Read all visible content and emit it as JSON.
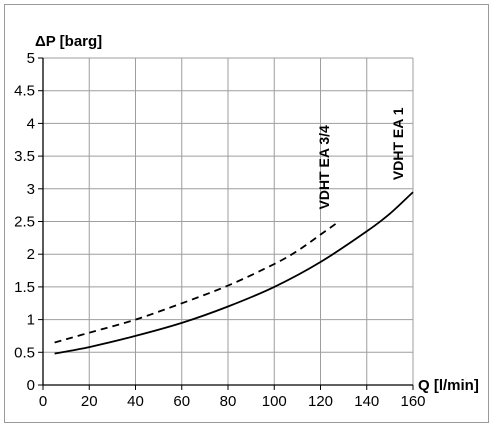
{
  "chart_data": {
    "type": "line",
    "xlabel": "Q [l/min]",
    "ylabel": "ΔP [barg]",
    "xlim": [
      0,
      160
    ],
    "ylim": [
      0,
      5
    ],
    "x_ticks": [
      "0",
      "20",
      "40",
      "60",
      "80",
      "100",
      "120",
      "140",
      "160"
    ],
    "y_ticks": [
      "0",
      "0.5",
      "1",
      "1.5",
      "2",
      "2.5",
      "3",
      "3.5",
      "4",
      "4.5",
      "5"
    ],
    "x_tick_values": [
      0,
      20,
      40,
      60,
      80,
      100,
      120,
      140,
      160
    ],
    "y_tick_values": [
      0,
      0.5,
      1,
      1.5,
      2,
      2.5,
      3,
      3.5,
      4,
      4.5,
      5
    ],
    "grid": true,
    "legend": "none",
    "series": [
      {
        "name": "VDHT EA 3/4",
        "style": "dashed",
        "color": "#000000",
        "x": [
          5,
          20,
          40,
          60,
          80,
          100,
          110,
          120,
          128
        ],
        "y": [
          0.65,
          0.8,
          1.0,
          1.25,
          1.52,
          1.85,
          2.05,
          2.3,
          2.5
        ]
      },
      {
        "name": "VDHT EA 1",
        "style": "solid",
        "color": "#000000",
        "x": [
          5,
          20,
          40,
          60,
          80,
          100,
          120,
          140,
          150,
          160
        ],
        "y": [
          0.48,
          0.58,
          0.75,
          0.95,
          1.2,
          1.5,
          1.88,
          2.35,
          2.62,
          2.95
        ]
      }
    ]
  }
}
